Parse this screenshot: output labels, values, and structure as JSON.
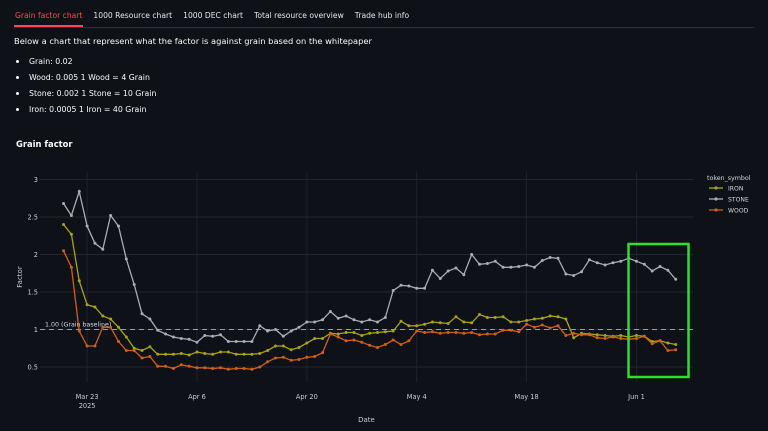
{
  "tabs": [
    {
      "label": "Grain factor chart",
      "active": true
    },
    {
      "label": "1000 Resource chart",
      "active": false
    },
    {
      "label": "1000 DEC chart",
      "active": false
    },
    {
      "label": "Total resource overview",
      "active": false
    },
    {
      "label": "Trade hub info",
      "active": false
    }
  ],
  "intro": "Below a chart that represent what the factor is against grain based on the whitepaper",
  "items": [
    "Grain: 0.02",
    "Wood: 0.005 1 Wood = 4 Grain",
    "Stone: 0.002 1 Stone = 10 Grain",
    "Iron: 0.0005 1 Iron = 40 Grain"
  ],
  "colors": {
    "background": "#0e1117",
    "tab_active": "#ff4b4b",
    "iron": "#a7a314",
    "stone": "#a9acb3",
    "wood": "#cf5f16",
    "highlight_box": "#2ee027",
    "baseline": "#9aa0a6"
  },
  "chart_data": {
    "type": "line",
    "title": "Grain factor",
    "xlabel": "Date",
    "ylabel": "Factor",
    "ylim": [
      0.3,
      3.1
    ],
    "yticks": [
      "0.5",
      "1",
      "1.5",
      "2",
      "2.5",
      "3"
    ],
    "xticks": [
      {
        "label": "Mar 23",
        "sub": "2025",
        "date": "2025-03-23"
      },
      {
        "label": "Apr 6",
        "sub": "",
        "date": "2025-04-06"
      },
      {
        "label": "Apr 20",
        "sub": "",
        "date": "2025-04-20"
      },
      {
        "label": "May 4",
        "sub": "",
        "date": "2025-05-04"
      },
      {
        "label": "May 18",
        "sub": "",
        "date": "2025-05-18"
      },
      {
        "label": "Jun 1",
        "sub": "",
        "date": "2025-06-01"
      }
    ],
    "baseline": {
      "value": 1,
      "label": "1.00 (Grain baseline)"
    },
    "legend_title": "token_symbol",
    "legend_position": "right",
    "grid": true,
    "x": [
      "2025-03-20",
      "2025-03-21",
      "2025-03-22",
      "2025-03-23",
      "2025-03-24",
      "2025-03-25",
      "2025-03-26",
      "2025-03-27",
      "2025-03-28",
      "2025-03-29",
      "2025-03-30",
      "2025-03-31",
      "2025-04-01",
      "2025-04-02",
      "2025-04-03",
      "2025-04-04",
      "2025-04-05",
      "2025-04-06",
      "2025-04-07",
      "2025-04-08",
      "2025-04-09",
      "2025-04-10",
      "2025-04-11",
      "2025-04-12",
      "2025-04-13",
      "2025-04-14",
      "2025-04-15",
      "2025-04-16",
      "2025-04-17",
      "2025-04-18",
      "2025-04-19",
      "2025-04-20",
      "2025-04-21",
      "2025-04-22",
      "2025-04-23",
      "2025-04-24",
      "2025-04-25",
      "2025-04-26",
      "2025-04-27",
      "2025-04-28",
      "2025-04-29",
      "2025-04-30",
      "2025-05-01",
      "2025-05-02",
      "2025-05-03",
      "2025-05-04",
      "2025-05-05",
      "2025-05-06",
      "2025-05-07",
      "2025-05-08",
      "2025-05-09",
      "2025-05-10",
      "2025-05-11",
      "2025-05-12",
      "2025-05-13",
      "2025-05-14",
      "2025-05-15",
      "2025-05-16",
      "2025-05-17",
      "2025-05-18",
      "2025-05-19",
      "2025-05-20",
      "2025-05-21",
      "2025-05-22",
      "2025-05-23",
      "2025-05-24",
      "2025-05-25",
      "2025-05-26",
      "2025-05-27",
      "2025-05-28",
      "2025-05-29",
      "2025-05-30",
      "2025-05-31",
      "2025-06-01",
      "2025-06-02",
      "2025-06-03",
      "2025-06-04",
      "2025-06-05",
      "2025-06-06"
    ],
    "series": [
      {
        "name": "IRON",
        "color": "#a7a314",
        "values": [
          2.4,
          2.27,
          1.65,
          1.33,
          1.3,
          1.18,
          1.14,
          1.03,
          0.9,
          0.75,
          0.72,
          0.77,
          0.67,
          0.67,
          0.67,
          0.68,
          0.66,
          0.7,
          0.68,
          0.67,
          0.7,
          0.7,
          0.67,
          0.67,
          0.67,
          0.68,
          0.72,
          0.78,
          0.78,
          0.73,
          0.76,
          0.82,
          0.88,
          0.88,
          0.95,
          0.94,
          0.96,
          0.96,
          0.92,
          0.95,
          0.96,
          0.97,
          0.98,
          1.11,
          1.05,
          1.05,
          1.07,
          1.1,
          1.09,
          1.08,
          1.17,
          1.1,
          1.09,
          1.2,
          1.16,
          1.16,
          1.17,
          1.1,
          1.1,
          1.12,
          1.14,
          1.15,
          1.18,
          1.17,
          1.14,
          0.89,
          0.95,
          0.94,
          0.93,
          0.92,
          0.91,
          0.92,
          0.9,
          0.92,
          0.91,
          0.84,
          0.85,
          0.82,
          0.8
        ]
      },
      {
        "name": "STONE",
        "color": "#a9acb3",
        "values": [
          2.68,
          2.52,
          2.84,
          2.38,
          2.15,
          2.07,
          2.52,
          2.38,
          1.94,
          1.6,
          1.21,
          1.14,
          0.99,
          0.94,
          0.9,
          0.88,
          0.87,
          0.83,
          0.92,
          0.91,
          0.93,
          0.84,
          0.84,
          0.84,
          0.84,
          1.05,
          0.98,
          1.0,
          0.91,
          0.98,
          1.03,
          1.1,
          1.1,
          1.13,
          1.24,
          1.15,
          1.18,
          1.13,
          1.1,
          1.13,
          1.1,
          1.16,
          1.52,
          1.59,
          1.58,
          1.55,
          1.55,
          1.79,
          1.68,
          1.78,
          1.82,
          1.73,
          2.0,
          1.87,
          1.88,
          1.91,
          1.83,
          1.83,
          1.84,
          1.86,
          1.83,
          1.92,
          1.96,
          1.95,
          1.74,
          1.72,
          1.77,
          1.93,
          1.89,
          1.86,
          1.89,
          1.91,
          1.95,
          1.91,
          1.87,
          1.78,
          1.84,
          1.79,
          1.67
        ]
      },
      {
        "name": "WOOD",
        "color": "#cf5f16",
        "values": [
          2.05,
          1.83,
          0.98,
          0.78,
          0.78,
          1.03,
          1.03,
          0.84,
          0.72,
          0.72,
          0.62,
          0.64,
          0.51,
          0.51,
          0.48,
          0.53,
          0.51,
          0.49,
          0.49,
          0.48,
          0.49,
          0.47,
          0.48,
          0.48,
          0.47,
          0.5,
          0.57,
          0.62,
          0.63,
          0.59,
          0.6,
          0.63,
          0.64,
          0.69,
          0.94,
          0.9,
          0.85,
          0.86,
          0.83,
          0.79,
          0.76,
          0.8,
          0.86,
          0.8,
          0.85,
          0.98,
          0.96,
          0.97,
          0.95,
          0.96,
          0.96,
          0.95,
          0.96,
          0.93,
          0.94,
          0.94,
          0.99,
          0.99,
          0.97,
          1.07,
          1.03,
          1.06,
          1.02,
          1.05,
          0.92,
          0.95,
          0.93,
          0.93,
          0.89,
          0.88,
          0.9,
          0.88,
          0.87,
          0.88,
          0.91,
          0.81,
          0.85,
          0.72,
          0.73
        ]
      }
    ]
  }
}
